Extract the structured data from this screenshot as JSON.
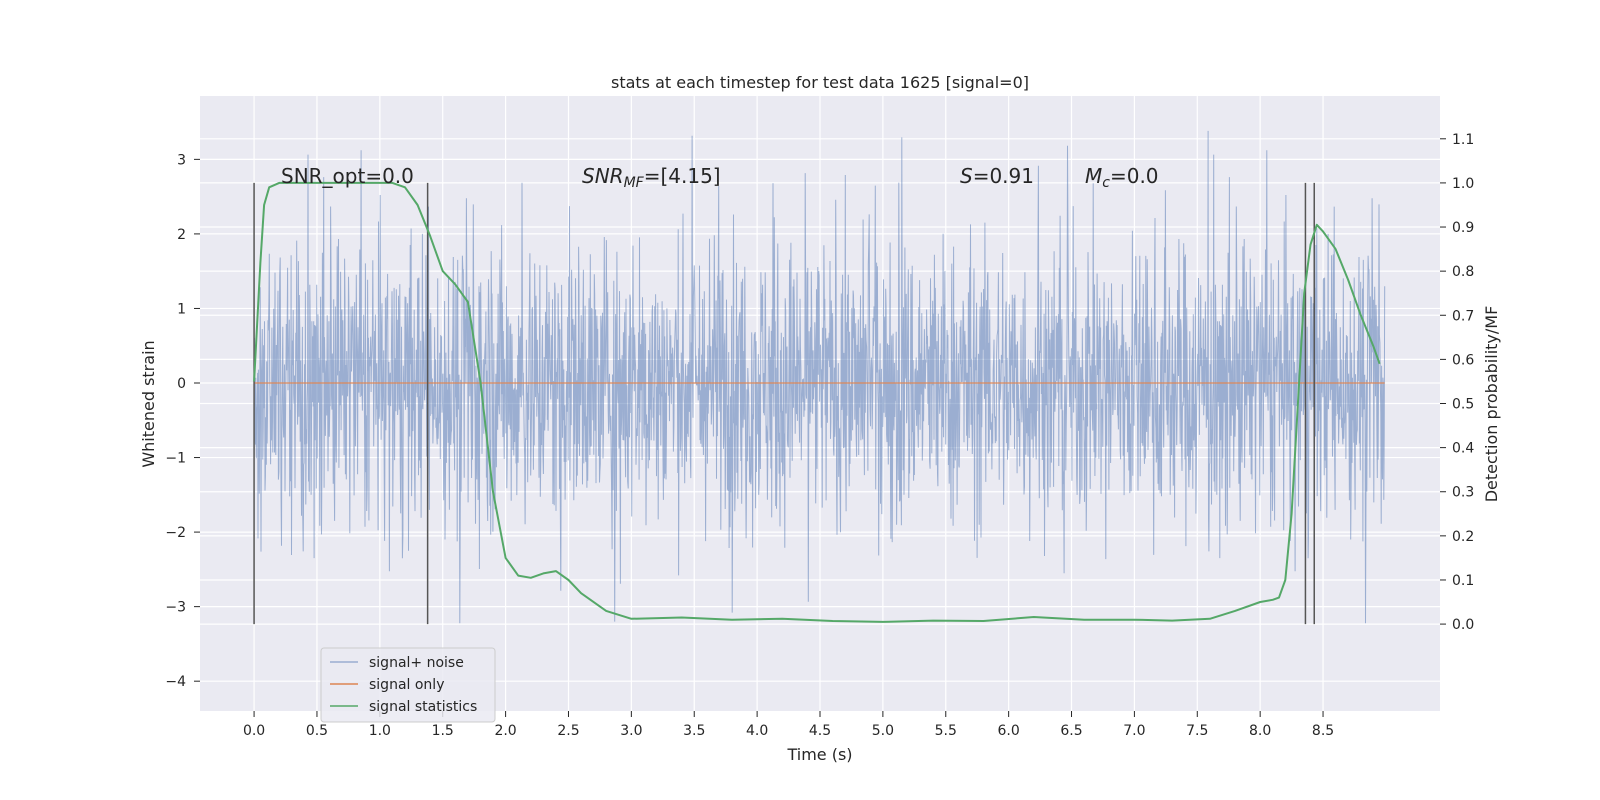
{
  "chart_data": {
    "type": "line",
    "title": "stats at each timestep for test data 1625 [signal=0]",
    "xlabel": "Time (s)",
    "ylabel": "Whitened strain",
    "y2label": "Detection probability/MF",
    "xlim": [
      -0.43,
      9.43
    ],
    "ylim": [
      -4.4,
      3.85
    ],
    "y2lim": [
      -0.197,
      1.197
    ],
    "x_ticks": [
      "0.0",
      "0.5",
      "1.0",
      "1.5",
      "2.0",
      "2.5",
      "3.0",
      "3.5",
      "4.0",
      "4.5",
      "5.0",
      "5.5",
      "6.0",
      "6.5",
      "7.0",
      "7.5",
      "8.0",
      "8.5"
    ],
    "y_ticks": [
      "3",
      "2",
      "1",
      "0",
      "−1",
      "−2",
      "−3",
      "−4"
    ],
    "y2_ticks": [
      "1.1",
      "1.0",
      "0.9",
      "0.8",
      "0.7",
      "0.6",
      "0.5",
      "0.4",
      "0.3",
      "0.2",
      "0.1",
      "0.0"
    ],
    "grid": true,
    "background": "#eaeaf2",
    "legend_position": "lower-left",
    "annotations": {
      "snr_opt": "SNR_opt=0.0",
      "snr_mf_main": "SNR",
      "snr_mf_sub": "MF",
      "snr_mf_value": "=[4.15]",
      "s_main": "S",
      "s_value": "=0.91",
      "mc_main": "M",
      "mc_sub": "c",
      "mc_value": "=0.0"
    },
    "series": [
      {
        "name": "signal+ noise",
        "color": "#4c72b0",
        "x_range": [
          0.0,
          8.99
        ],
        "typical_range": [
          -1.6,
          1.6
        ],
        "extremes": [
          -4.0,
          3.5
        ]
      },
      {
        "name": "signal only",
        "color": "#dd8452",
        "x": [
          0.0,
          8.99
        ],
        "values": [
          0.0,
          0.0
        ]
      },
      {
        "name": "signal statistics",
        "color": "#55a868",
        "axis": "right",
        "x": [
          0.0,
          0.05,
          0.08,
          0.12,
          0.2,
          0.4,
          0.8,
          1.1,
          1.2,
          1.3,
          1.4,
          1.5,
          1.6,
          1.7,
          1.8,
          1.9,
          2.0,
          2.1,
          2.2,
          2.3,
          2.4,
          2.5,
          2.6,
          2.8,
          3.0,
          3.4,
          3.8,
          4.2,
          4.6,
          5.0,
          5.4,
          5.8,
          6.2,
          6.6,
          7.0,
          7.3,
          7.6,
          7.8,
          8.0,
          8.1,
          8.15,
          8.2,
          8.25,
          8.3,
          8.35,
          8.4,
          8.45,
          8.5,
          8.6,
          8.7,
          8.8,
          8.9,
          8.95
        ],
        "values": [
          0.55,
          0.82,
          0.95,
          0.99,
          1.0,
          1.0,
          1.0,
          1.0,
          0.99,
          0.95,
          0.88,
          0.8,
          0.77,
          0.73,
          0.55,
          0.3,
          0.15,
          0.11,
          0.105,
          0.115,
          0.12,
          0.1,
          0.07,
          0.03,
          0.012,
          0.015,
          0.01,
          0.012,
          0.007,
          0.005,
          0.008,
          0.007,
          0.016,
          0.01,
          0.01,
          0.008,
          0.012,
          0.03,
          0.05,
          0.055,
          0.06,
          0.1,
          0.25,
          0.5,
          0.75,
          0.86,
          0.905,
          0.89,
          0.85,
          0.78,
          0.7,
          0.63,
          0.59
        ]
      }
    ],
    "vertical_lines": [
      0.0,
      1.38,
      8.36,
      8.43
    ]
  }
}
